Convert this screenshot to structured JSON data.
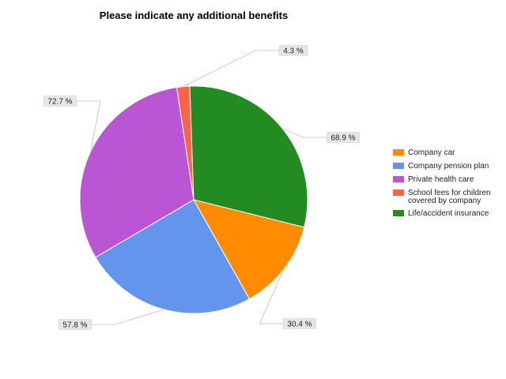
{
  "chart_data": {
    "type": "pie",
    "title": "Please indicate any additional benefits",
    "categories": [
      "Company car",
      "Company pension plan",
      "Private health care",
      "School fees for children covered by company",
      "Life/accident insurance"
    ],
    "legend_lines": [
      [
        "Company car"
      ],
      [
        "Company pension plan"
      ],
      [
        "Private health care"
      ],
      [
        "School fees for children",
        "covered by company"
      ],
      [
        "Life/accident insurance"
      ]
    ],
    "values": [
      30.4,
      57.8,
      72.7,
      4.3,
      68.9
    ],
    "data_labels": [
      "30.4 %",
      "57.8 %",
      "72.7 %",
      "4.3 %",
      "68.9 %"
    ],
    "colors": [
      "#ff8c00",
      "#6495ed",
      "#ba55d3",
      "#ff6347",
      "#228b22"
    ],
    "start_category": "School fees for children covered by company",
    "direction": "clockwise",
    "legend_position": "right"
  }
}
